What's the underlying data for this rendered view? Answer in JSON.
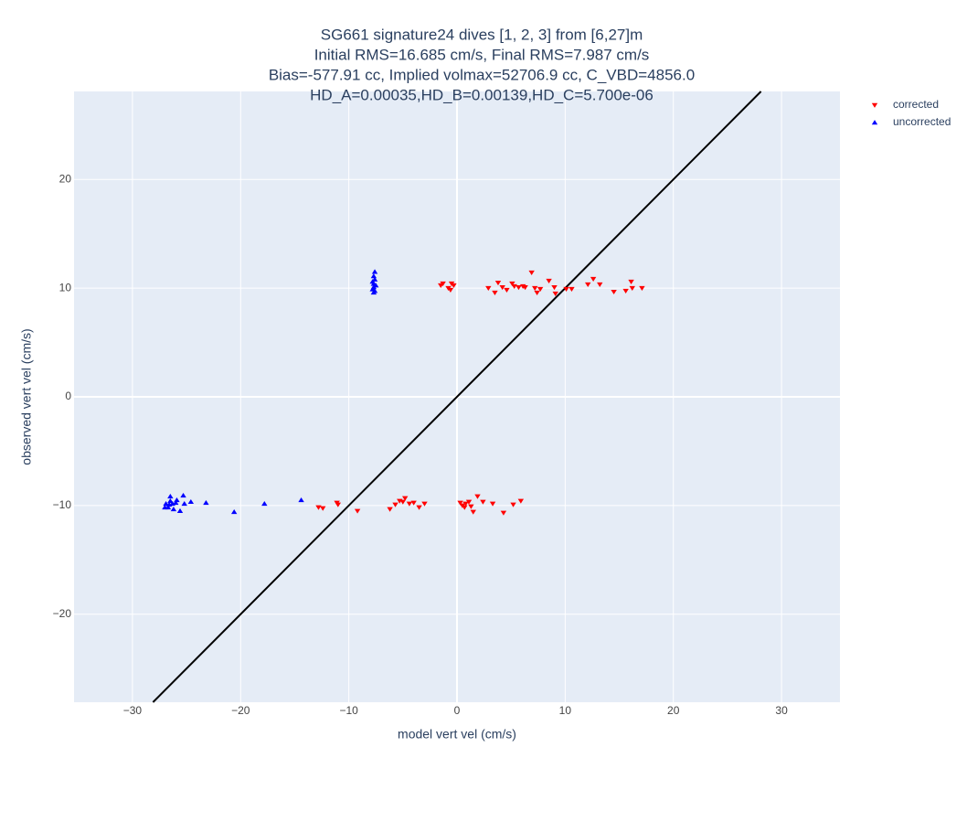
{
  "chart_data": {
    "type": "scatter",
    "title_lines": [
      "SG661 signature24 dives [1, 2, 3] from [6,27]m",
      "Initial RMS=16.685 cm/s, Final RMS=7.987 cm/s",
      "Bias=-577.91 cc, Implied volmax=52706.9 cc, C_VBD=4856.0",
      "HD_A=0.00035,HD_B=0.00139,HD_C=5.700e-06"
    ],
    "x_label": "model vert vel (cm/s)",
    "y_label": "observed vert vel (cm/s)",
    "xlim": [
      -35.4,
      35.4
    ],
    "ylim": [
      -28.1,
      28.1
    ],
    "xticks": [
      {
        "value": -30,
        "label": "−30"
      },
      {
        "value": -20,
        "label": "−20"
      },
      {
        "value": -10,
        "label": "−10"
      },
      0,
      10,
      20,
      30
    ],
    "yticks": [
      {
        "value": -20,
        "label": "−20"
      },
      {
        "value": -10,
        "label": "−10"
      },
      0,
      10,
      20
    ],
    "grid": true,
    "legend": "top-right",
    "reference_line": {
      "x": [
        -28.1,
        28.1
      ],
      "y": [
        -28.1,
        28.1
      ],
      "color": "#000000"
    },
    "series": [
      {
        "name": "corrected",
        "color": "#ff0000",
        "marker": "triangle-down",
        "x": [
          -1.5,
          -1.3,
          -0.8,
          -0.6,
          -0.5,
          -0.3,
          2.9,
          3.5,
          3.8,
          4.2,
          4.6,
          5.1,
          5.3,
          5.7,
          6.1,
          6.3,
          6.9,
          7.2,
          7.4,
          7.7,
          8.5,
          9.0,
          9.1,
          10.1,
          10.6,
          12.1,
          12.6,
          13.2,
          14.5,
          15.6,
          16.1,
          16.2,
          17.1,
          -12.8,
          -12.4,
          -11.1,
          -11.0,
          -9.2,
          -6.2,
          -5.7,
          -5.3,
          -5.0,
          -4.8,
          -4.4,
          -4.0,
          -3.5,
          -3.0,
          0.3,
          0.5,
          0.7,
          0.8,
          1.1,
          1.3,
          1.5,
          1.9,
          2.4,
          3.3,
          4.3,
          5.2,
          5.9
        ],
        "values": [
          10.25,
          10.42,
          10.0,
          9.83,
          10.42,
          10.25,
          10.0,
          9.58,
          10.5,
          10.08,
          9.83,
          10.42,
          10.17,
          10.08,
          10.17,
          10.08,
          11.43,
          10.0,
          9.58,
          9.92,
          10.67,
          10.08,
          9.5,
          9.92,
          9.92,
          10.34,
          10.84,
          10.34,
          9.66,
          9.75,
          10.59,
          10.0,
          10.0,
          -10.17,
          -10.25,
          -9.75,
          -9.92,
          -10.5,
          -10.34,
          -9.92,
          -9.58,
          -9.66,
          -9.33,
          -9.83,
          -9.75,
          -10.17,
          -9.83,
          -9.75,
          -10.0,
          -10.17,
          -9.83,
          -9.66,
          -10.08,
          -10.59,
          -9.16,
          -9.66,
          -9.83,
          -10.67,
          -9.92,
          -9.58
        ]
      },
      {
        "name": "uncorrected",
        "color": "#0000ff",
        "marker": "triangle-up",
        "x": [
          -7.6,
          -7.7,
          -7.6,
          -7.8,
          -7.7,
          -7.5,
          -7.7,
          -7.8,
          -7.6,
          -7.7,
          -26.9,
          -26.7,
          -26.5,
          -26.5,
          -26.3,
          -26.2,
          -26.0,
          -25.9,
          -25.6,
          -25.3,
          -25.2,
          -24.6,
          -23.2,
          -20.6,
          -17.8,
          -14.4,
          -27.0,
          -26.6
        ],
        "values": [
          11.5,
          11.1,
          10.8,
          10.6,
          10.4,
          10.25,
          10.1,
          9.9,
          9.75,
          9.6,
          -9.83,
          -10.17,
          -9.58,
          -9.16,
          -9.83,
          -10.34,
          -9.75,
          -9.5,
          -10.5,
          -9.08,
          -9.83,
          -9.66,
          -9.75,
          -10.59,
          -9.83,
          -9.5,
          -10.17,
          -9.92
        ]
      }
    ]
  }
}
